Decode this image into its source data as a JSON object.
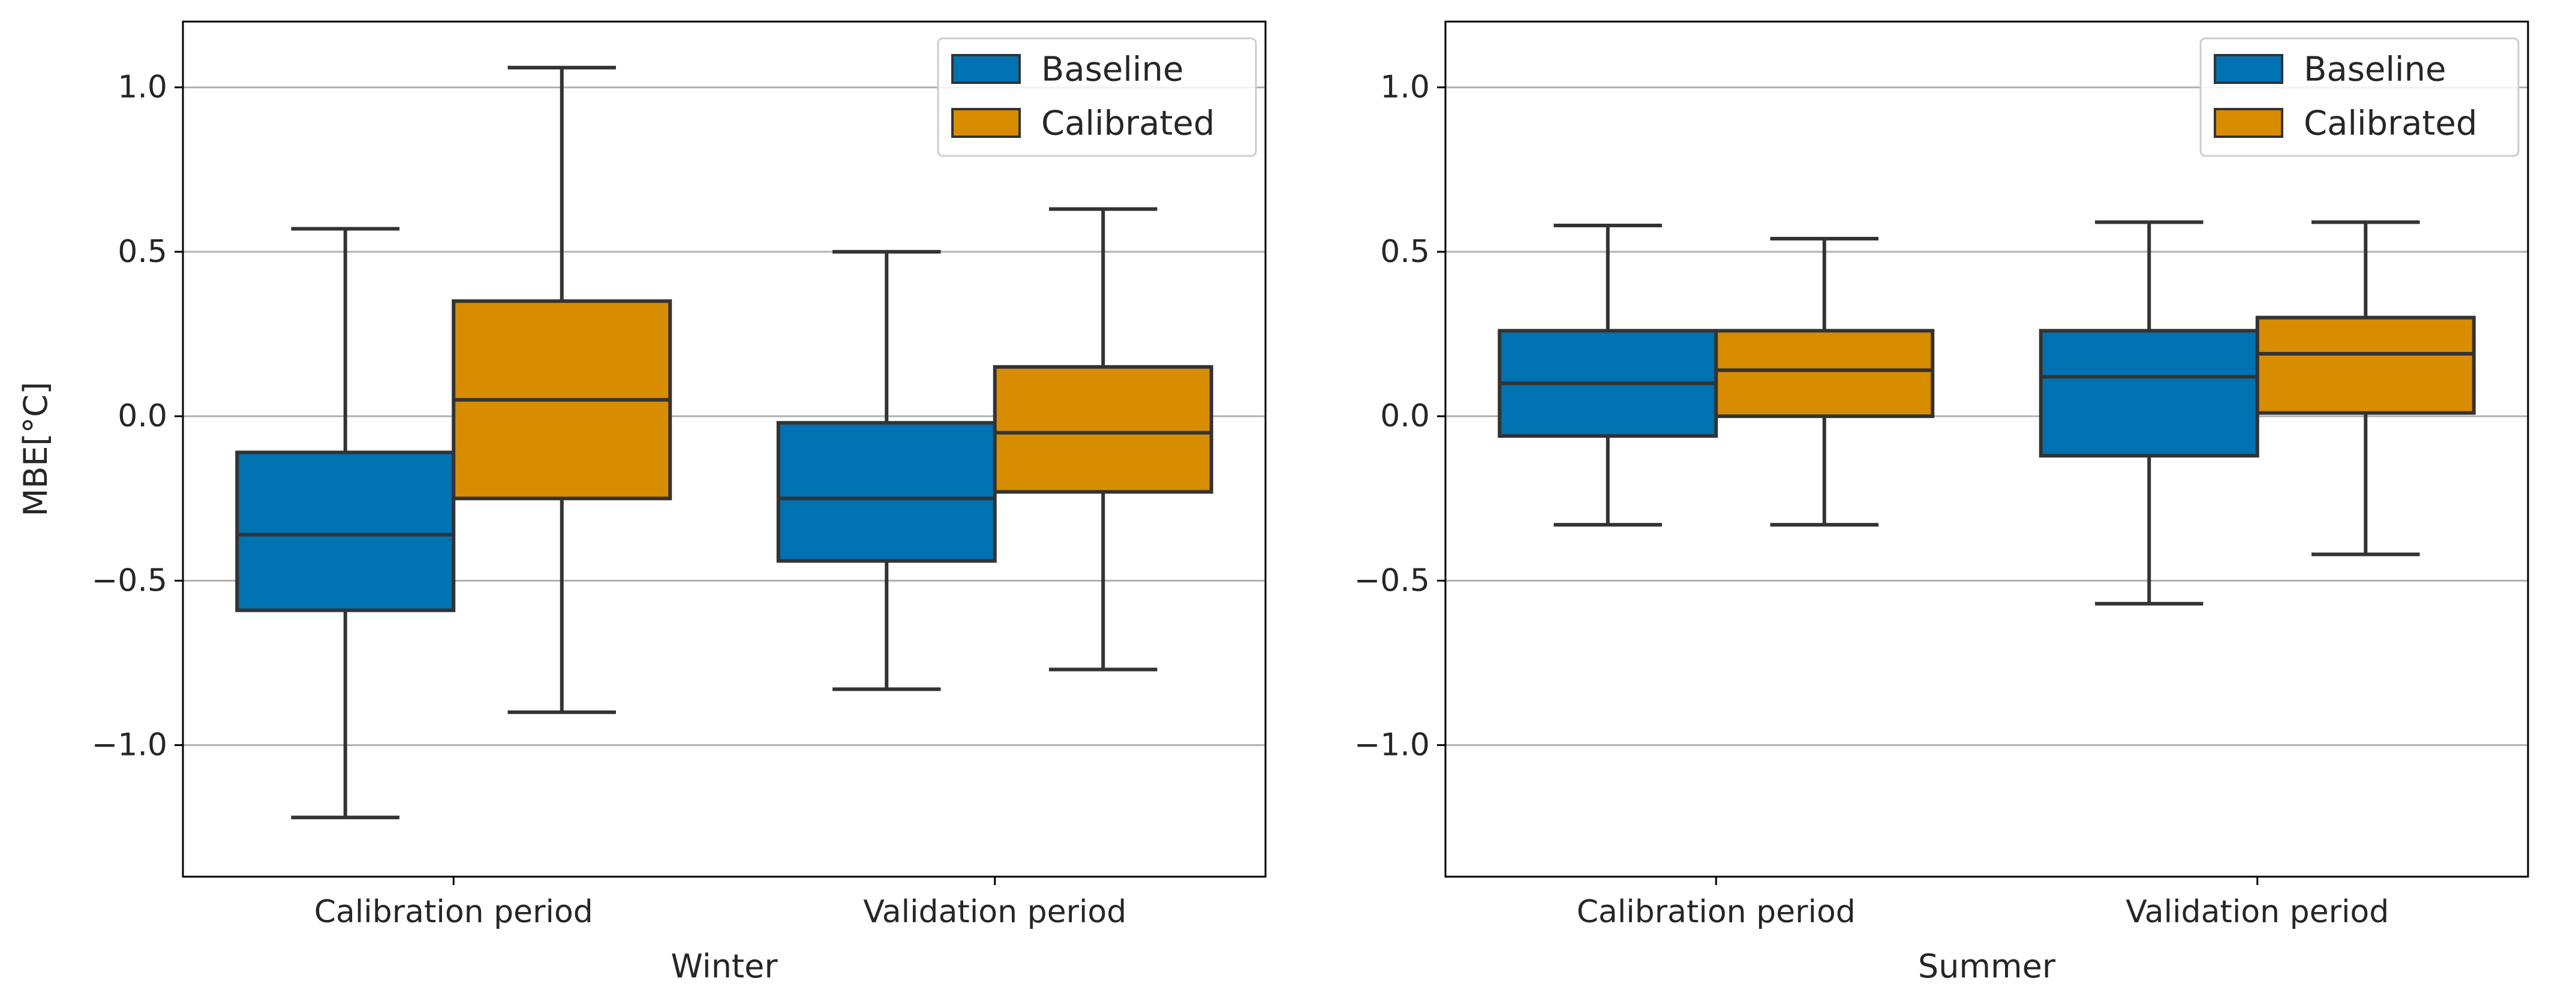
{
  "colors": {
    "baseline": "#0072b2",
    "calibrated": "#d88c00",
    "edge": "#333333",
    "grid": "#b0b0b0",
    "axes": "#000000"
  },
  "chart_data": [
    {
      "type": "boxplot",
      "panel": "left",
      "xlabel": "Winter",
      "ylabel": "MBE[°C]",
      "ylim": [
        -1.4,
        1.2
      ],
      "yticks": [
        1.0,
        0.5,
        0.0,
        -0.5,
        -1.0
      ],
      "ytick_labels": [
        "1.0",
        "0.5",
        "0.0",
        "−0.5",
        "−1.0"
      ],
      "grid": "horizontal",
      "legend_position": "top-right",
      "categories": [
        "Calibration period",
        "Validation period"
      ],
      "series": [
        {
          "name": "Baseline",
          "color_key": "baseline",
          "boxes": [
            {
              "whisker_low": -1.22,
              "q1": -0.59,
              "median": -0.36,
              "q3": -0.11,
              "whisker_high": 0.57
            },
            {
              "whisker_low": -0.83,
              "q1": -0.44,
              "median": -0.25,
              "q3": -0.02,
              "whisker_high": 0.5
            }
          ]
        },
        {
          "name": "Calibrated",
          "color_key": "calibrated",
          "boxes": [
            {
              "whisker_low": -0.9,
              "q1": -0.25,
              "median": 0.05,
              "q3": 0.35,
              "whisker_high": 1.06
            },
            {
              "whisker_low": -0.77,
              "q1": -0.23,
              "median": -0.05,
              "q3": 0.15,
              "whisker_high": 0.63
            }
          ]
        }
      ]
    },
    {
      "type": "boxplot",
      "panel": "right",
      "xlabel": "Summer",
      "ylabel": "",
      "ylim": [
        -1.4,
        1.2
      ],
      "yticks": [
        1.0,
        0.5,
        0.0,
        -0.5,
        -1.0
      ],
      "ytick_labels": [
        "1.0",
        "0.5",
        "0.0",
        "−0.5",
        "−1.0"
      ],
      "grid": "horizontal",
      "legend_position": "top-right",
      "categories": [
        "Calibration period",
        "Validation period"
      ],
      "series": [
        {
          "name": "Baseline",
          "color_key": "baseline",
          "boxes": [
            {
              "whisker_low": -0.33,
              "q1": -0.06,
              "median": 0.1,
              "q3": 0.26,
              "whisker_high": 0.58
            },
            {
              "whisker_low": -0.57,
              "q1": -0.12,
              "median": 0.12,
              "q3": 0.26,
              "whisker_high": 0.59
            }
          ]
        },
        {
          "name": "Calibrated",
          "color_key": "calibrated",
          "boxes": [
            {
              "whisker_low": -0.33,
              "q1": 0.0,
              "median": 0.14,
              "q3": 0.26,
              "whisker_high": 0.54
            },
            {
              "whisker_low": -0.42,
              "q1": 0.01,
              "median": 0.19,
              "q3": 0.3,
              "whisker_high": 0.59
            }
          ]
        }
      ]
    }
  ]
}
